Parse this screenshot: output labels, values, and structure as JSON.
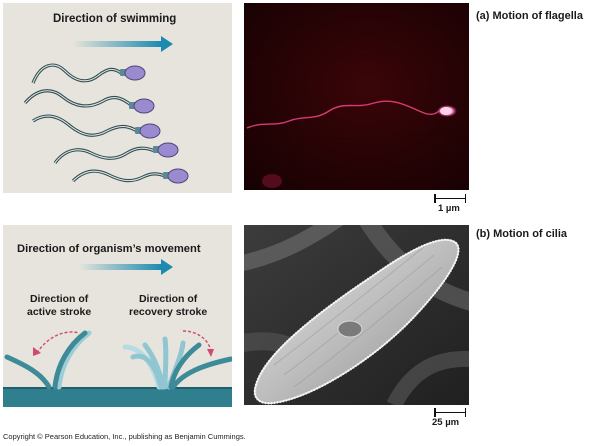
{
  "panel_a": {
    "caption": "(a) Motion of flagella",
    "diagram_label": "Direction of swimming",
    "scale_label": "1 µm"
  },
  "panel_b": {
    "caption": "(b) Motion of cilia",
    "diagram_label": "Direction of organism’s movement",
    "active_stroke_label": "Direction of\nactive stroke",
    "recovery_stroke_label": "Direction of\nrecovery stroke",
    "scale_label": "25 µm"
  },
  "footer": {
    "copyright": "Copyright © Pearson Education, Inc., publishing as Benjamin Cummings."
  },
  "colors": {
    "diagram_bg": "#e6e4dc",
    "flagellum_stroke": "#2d4d56",
    "sperm_head": "#9a8ad0",
    "arrow": "#1d8bb0",
    "cilium": "#3d8a99",
    "recovery_cilium": "#8fc6d2",
    "stroke_arrow": "#d14a6a"
  }
}
